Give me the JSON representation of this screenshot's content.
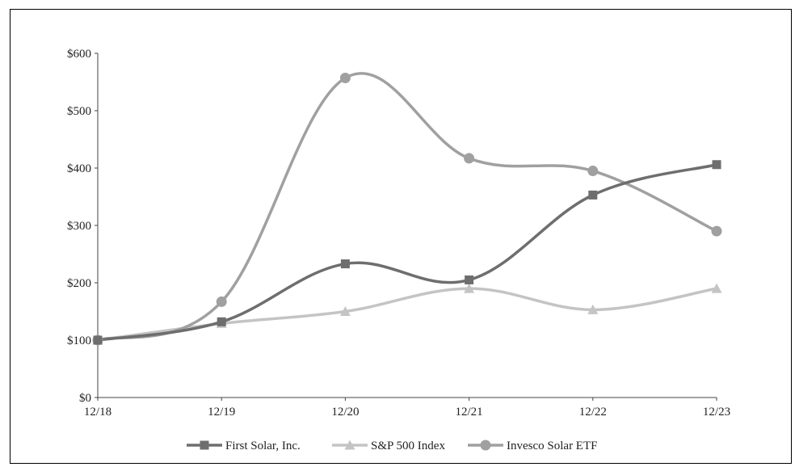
{
  "chart_data": {
    "type": "line",
    "title": "",
    "xlabel": "",
    "ylabel": "",
    "categories": [
      "12/18",
      "12/19",
      "12/20",
      "12/21",
      "12/22",
      "12/23"
    ],
    "y_ticks": [
      "$0",
      "$100",
      "$200",
      "$300",
      "$400",
      "$500",
      "$600"
    ],
    "ylim": [
      0,
      600
    ],
    "grid": false,
    "legend_position": "bottom",
    "series": [
      {
        "name": "First Solar, Inc.",
        "values": [
          100,
          132,
          233,
          205,
          353,
          406
        ],
        "color": "#6e6e6e",
        "marker": "square"
      },
      {
        "name": "S&P 500 Index",
        "values": [
          100,
          129,
          150,
          190,
          153,
          190
        ],
        "color": "#c4c4c4",
        "marker": "triangle"
      },
      {
        "name": "Invesco Solar ETF",
        "values": [
          100,
          167,
          557,
          417,
          395,
          290
        ],
        "color": "#a0a0a0",
        "marker": "circle"
      }
    ]
  }
}
